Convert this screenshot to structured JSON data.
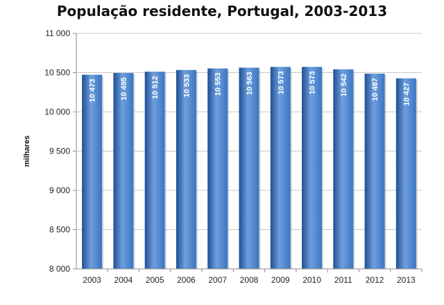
{
  "chart_data": {
    "type": "bar",
    "title": "População residente, Portugal, 2003-2013",
    "xlabel": "",
    "ylabel": "milhares",
    "categories": [
      "2003",
      "2004",
      "2005",
      "2006",
      "2007",
      "2008",
      "2009",
      "2010",
      "2011",
      "2012",
      "2013"
    ],
    "values": [
      10473,
      10495,
      10512,
      10533,
      10553,
      10563,
      10573,
      10573,
      10542,
      10487,
      10427
    ],
    "value_labels": [
      "10 473",
      "10 495",
      "10 512",
      "10 533",
      "10 553",
      "10 563",
      "10 573",
      "10 573",
      "10 542",
      "10 487",
      "10 427"
    ],
    "ylim": [
      8000,
      11000
    ],
    "yticks": [
      8000,
      8500,
      9000,
      9500,
      10000,
      10500,
      11000
    ],
    "ytick_labels": [
      "8 000",
      "8 500",
      "9 000",
      "9 500",
      "10 000",
      "10 500",
      "11 000"
    ],
    "grid": true,
    "legend": "none",
    "colors": {
      "bar": "#3a75c3",
      "bar_dark": "#1f4f94",
      "bar_light": "#6f9fdc",
      "grid": "#c8c8c8",
      "axis": "#8c8c8c"
    }
  }
}
